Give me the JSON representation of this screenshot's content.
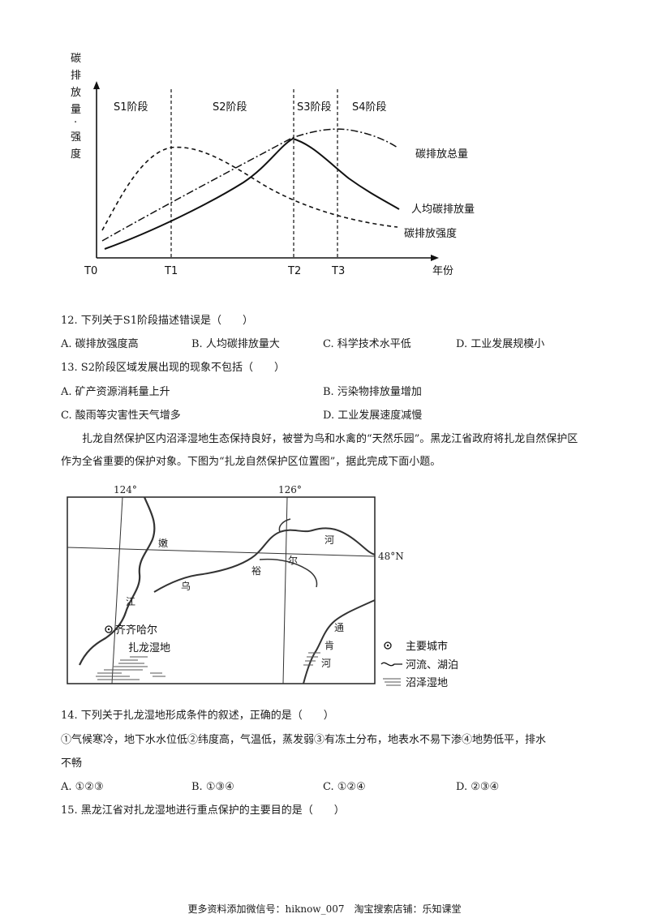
{
  "chart": {
    "ylabel_chars": [
      "碳",
      "排",
      "放",
      "量",
      "·",
      "强",
      "度"
    ],
    "stages": [
      "S1阶段",
      "S2阶段",
      "S3阶段",
      "S4阶段"
    ],
    "t_labels": [
      "T0",
      "T1",
      "T2",
      "T3"
    ],
    "xlabel": "年份",
    "series": [
      {
        "name": "碳排放总量",
        "style": "dash-dot"
      },
      {
        "name": "人均碳排放量",
        "style": "solid"
      },
      {
        "name": "碳排放强度",
        "style": "dashed"
      }
    ]
  },
  "q12": {
    "stem": "12. 下列关于S1阶段描述错误是（　　）",
    "options": [
      "A. 碳排放强度高",
      "B. 人均碳排放量大",
      "C. 科学技术水平低",
      "D. 工业发展规模小"
    ]
  },
  "q13": {
    "stem": "13. S2阶段区域发展出现的现象不包括（　　）",
    "options": [
      "A. 矿产资源消耗量上升",
      "B. 污染物排放量增加",
      "C. 酸雨等灾害性天气增多",
      "D. 工业发展速度减慢"
    ]
  },
  "passage": "扎龙自然保护区内沼泽湿地生态保持良好，被誉为鸟和水禽的“天然乐园”。黑龙江省政府将扎龙自然保护区作为全省重要的保护对象。下图为“扎龙自然保护区位置图”，据此完成下面小题。",
  "map": {
    "lon1": "124°",
    "lon2": "126°",
    "lat": "48°N",
    "river_chars_nen": [
      "嫩",
      "江"
    ],
    "river_chars_wuyuer": [
      "乌",
      "裕",
      "尔",
      "河"
    ],
    "river_chars_tongken": [
      "通",
      "肯",
      "河"
    ],
    "city": "齐齐哈尔",
    "wetland": "扎龙湿地",
    "legend": [
      "主要城市",
      "河流、湖泊",
      "沼泽湿地"
    ]
  },
  "q14": {
    "stem": "14. 下列关于扎龙湿地形成条件的叙述，正确的是（　　）",
    "statements_line1": "①气候寒冷，地下水水位低②纬度高，气温低，蒸发弱③有冻土分布，地表水不易下渗④地势低平，排水",
    "statements_line2": "不畅",
    "options": [
      "A. ①②③",
      "B. ①③④",
      "C. ①②④",
      "D. ②③④"
    ]
  },
  "q15": {
    "stem": "15. 黑龙江省对扎龙湿地进行重点保护的主要目的是（　　）"
  },
  "footer": "更多资料添加微信号：hiknow_007　淘宝搜索店铺：乐知课堂"
}
